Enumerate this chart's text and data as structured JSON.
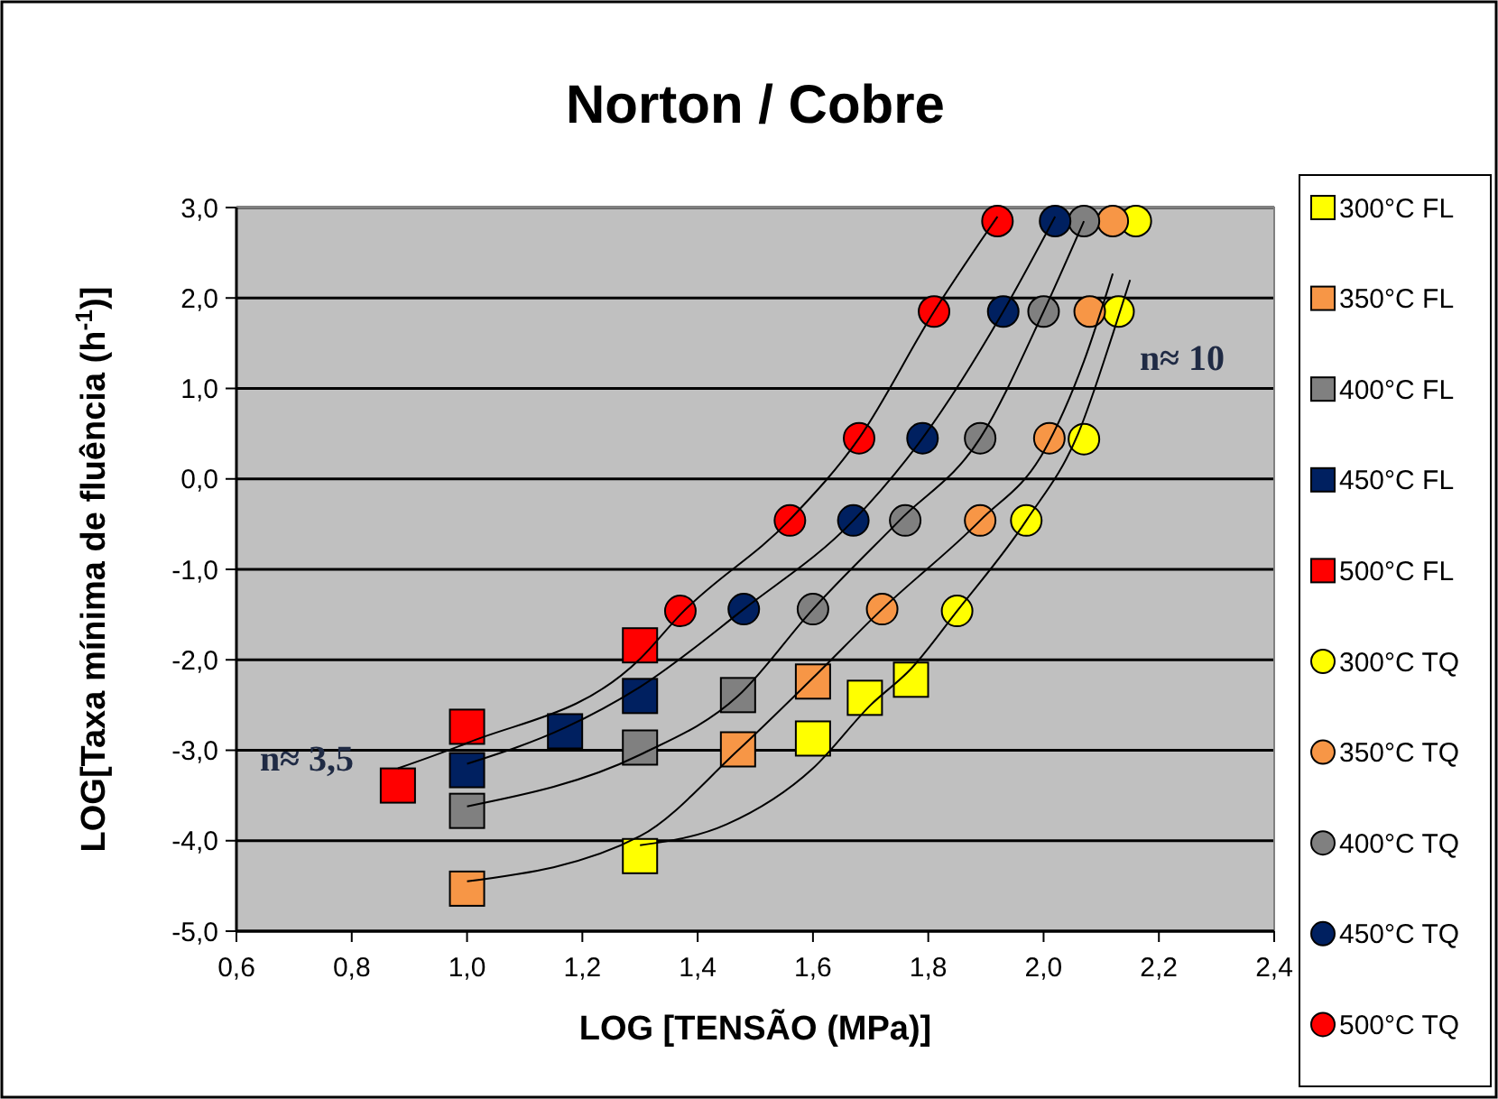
{
  "chart_data": {
    "type": "scatter",
    "title": "Norton  / Cobre",
    "xlabel": "LOG [TENSÃO (MPa)]",
    "ylabel": "LOG[Taxa mínima de fluência (h$^{-1}$)]",
    "xlim": [
      0.6,
      2.4
    ],
    "xticks": [
      {
        "value": 0.6,
        "label": "0,6"
      },
      {
        "value": 0.8,
        "label": "0,8"
      },
      {
        "value": 1.0,
        "label": "1,0"
      },
      {
        "value": 1.2,
        "label": "1,2"
      },
      {
        "value": 1.4,
        "label": "1,4"
      },
      {
        "value": 1.6,
        "label": "1,6"
      },
      {
        "value": 1.8,
        "label": "1,8"
      },
      {
        "value": 2.0,
        "label": "2,0"
      },
      {
        "value": 2.2,
        "label": "2,2"
      },
      {
        "value": 2.4,
        "label": "2,4"
      }
    ],
    "ylim": [
      -5,
      3
    ],
    "yticks": [
      {
        "value": -5,
        "label": "-5,0"
      },
      {
        "value": -4,
        "label": "-4,0"
      },
      {
        "value": -3,
        "label": "-3,0"
      },
      {
        "value": -2,
        "label": "-2,0"
      },
      {
        "value": -1,
        "label": "-1,0"
      },
      {
        "value": 0,
        "label": "0,0"
      },
      {
        "value": 1,
        "label": "1,0"
      },
      {
        "value": 2,
        "label": "2,0"
      },
      {
        "value": 3,
        "label": "3,0"
      }
    ],
    "grid": "y",
    "legend": "right",
    "annotations": [
      "n≈ 3,5",
      "n≈ 10"
    ],
    "series": [
      {
        "type": "line",
        "color": "#000000",
        "marker": "none",
        "x": [
          0.88,
          1.0,
          1.3,
          1.37,
          1.56,
          1.68,
          1.81,
          1.92
        ],
        "values": [
          -3.2,
          -2.92,
          -1.99,
          -1.5,
          -0.45,
          0.45,
          1.85,
          2.9
        ]
      },
      {
        "type": "line",
        "color": "#000000",
        "marker": "none",
        "x": [
          1.0,
          1.17,
          1.3,
          1.48,
          1.67,
          1.79,
          1.93,
          2.02
        ],
        "values": [
          -3.15,
          -2.75,
          -2.3,
          -1.44,
          -0.46,
          0.45,
          1.85,
          2.9
        ]
      },
      {
        "type": "line",
        "color": "#000000",
        "marker": "none",
        "x": [
          1.0,
          1.3,
          1.47,
          1.6,
          1.75,
          1.89,
          2.0,
          2.07
        ],
        "values": [
          -3.62,
          -3.05,
          -2.4,
          -1.44,
          -0.46,
          0.45,
          1.85,
          2.85
        ]
      },
      {
        "type": "line",
        "color": "#000000",
        "marker": "none",
        "x": [
          1.0,
          1.3,
          1.47,
          1.6,
          1.72,
          1.89,
          2.0,
          2.07,
          2.12
        ],
        "values": [
          -4.45,
          -3.95,
          -3.0,
          -2.2,
          -1.44,
          -0.46,
          0.3,
          1.3,
          2.27
        ]
      },
      {
        "type": "line",
        "color": "#000000",
        "marker": "none",
        "x": [
          1.3,
          1.45,
          1.6,
          1.7,
          1.77,
          1.85,
          1.97,
          2.06,
          2.12,
          2.15
        ],
        "values": [
          -4.05,
          -3.82,
          -3.2,
          -2.5,
          -2.1,
          -1.46,
          -0.46,
          0.5,
          1.6,
          2.2
        ]
      },
      {
        "name": "300°C FL",
        "color": "#ffff00",
        "marker": "square",
        "x": [
          1.3,
          1.6,
          1.69,
          1.77
        ],
        "values": [
          -4.17,
          -2.87,
          -2.42,
          -2.22
        ]
      },
      {
        "name": "350°C FL",
        "color": "#f79646",
        "marker": "square",
        "x": [
          1.0,
          1.47,
          1.6
        ],
        "values": [
          -4.53,
          -2.99,
          -2.24
        ]
      },
      {
        "name": "400°C FL",
        "color": "#808080",
        "marker": "square",
        "x": [
          1.0,
          1.3,
          1.47
        ],
        "values": [
          -3.67,
          -2.97,
          -2.39
        ]
      },
      {
        "name": "450°C FL",
        "color": "#002060",
        "marker": "square",
        "x": [
          1.0,
          1.17,
          1.3
        ],
        "values": [
          -3.22,
          -2.79,
          -2.4
        ]
      },
      {
        "name": "500°C FL",
        "color": "#ff0000",
        "marker": "square",
        "x": [
          0.88,
          1.0,
          1.3
        ],
        "values": [
          -3.39,
          -2.74,
          -1.84
        ]
      },
      {
        "name": "300°C TQ",
        "color": "#ffff00",
        "marker": "circle",
        "x": [
          1.85,
          1.97,
          2.07,
          2.13,
          2.16
        ],
        "values": [
          -1.46,
          -0.46,
          0.44,
          1.85,
          2.85
        ]
      },
      {
        "name": "350°C TQ",
        "color": "#f79646",
        "marker": "circle",
        "x": [
          1.72,
          1.89,
          2.01,
          2.08,
          2.12
        ],
        "values": [
          -1.44,
          -0.46,
          0.45,
          1.85,
          2.85
        ]
      },
      {
        "name": "400°C TQ",
        "color": "#808080",
        "marker": "circle",
        "x": [
          1.6,
          1.76,
          1.89,
          2.0,
          2.07
        ],
        "values": [
          -1.44,
          -0.46,
          0.45,
          1.85,
          2.85
        ]
      },
      {
        "name": "450°C TQ",
        "color": "#002060",
        "marker": "circle",
        "x": [
          1.48,
          1.67,
          1.79,
          1.93,
          2.02
        ],
        "values": [
          -1.44,
          -0.46,
          0.45,
          1.85,
          2.85
        ]
      },
      {
        "name": "500°C TQ",
        "color": "#ff0000",
        "marker": "circle",
        "x": [
          1.37,
          1.56,
          1.68,
          1.81,
          1.92
        ],
        "values": [
          -1.46,
          -0.46,
          0.45,
          1.85,
          2.85
        ]
      }
    ]
  }
}
